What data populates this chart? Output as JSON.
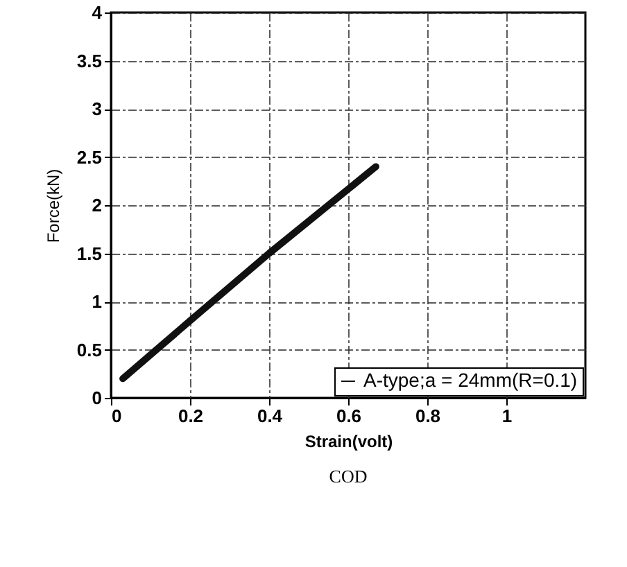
{
  "chart_data": {
    "type": "line",
    "xlabel": "Strain(volt)",
    "ylabel": "Force(kN)",
    "annotations": [
      "COD"
    ],
    "x": [
      0.03,
      0.2,
      0.4,
      0.67
    ],
    "series": [
      {
        "name": "A-type;a = 24mm(R=0.1)",
        "color": "#111111",
        "values": [
          0.2,
          0.8,
          1.5,
          2.4
        ]
      }
    ],
    "xlim": [
      0,
      1.2
    ],
    "xticks": [
      0,
      0.2,
      0.4,
      0.6,
      0.8,
      1
    ],
    "ylim": [
      0,
      4
    ],
    "yticks": [
      0,
      0.5,
      1,
      1.5,
      2,
      2.5,
      3,
      3.5,
      4
    ],
    "grid": true,
    "legend": "bottom right",
    "marker": "none",
    "line_style": "solid"
  }
}
